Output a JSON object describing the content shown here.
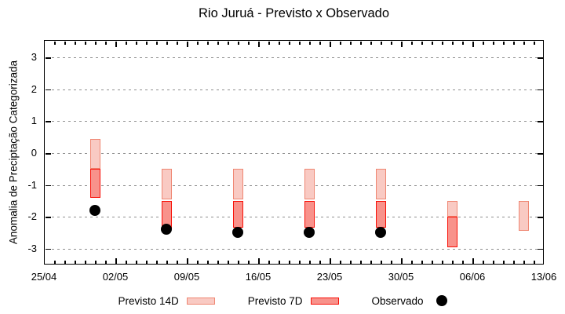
{
  "title": "Rio Juruá - Previsto x Observado",
  "ylabel": "Anomalia de Preciptação Categorizada",
  "legend": [
    {
      "label": "Previsto 14D",
      "swatch": "pink-box"
    },
    {
      "label": "Previsto 7D",
      "swatch": "red-box"
    },
    {
      "label": "Observado",
      "swatch": "black-dot"
    }
  ],
  "colors": {
    "p14_fill": "#f9cac3",
    "p14_border": "#ef8672",
    "p7_fill": "#f8928b",
    "p7_border": "#f81007",
    "obs": "#000000",
    "grid": "#8f8f8f",
    "axis": "#000000"
  },
  "chart_data": {
    "type": "bar",
    "subtype": "floating-range-bars-with-observed-points",
    "title": "Rio Juruá - Previsto x Observado",
    "xlabel": "",
    "ylabel": "Anomalia de Preciptação Categorizada",
    "grid": "dashed-horizontal",
    "legend_position": "below",
    "ylim": [
      -3.5,
      3.55
    ],
    "y_ticks": [
      -3,
      -2,
      -1,
      0,
      1,
      2,
      3
    ],
    "x_axis": {
      "start_label": "25/04",
      "end_label": "13/06",
      "tick_labels": [
        "25/04",
        "02/05",
        "09/05",
        "16/05",
        "23/05",
        "30/05",
        "06/06",
        "13/06"
      ],
      "tick_days": [
        0,
        7,
        14,
        21,
        28,
        35,
        42,
        49
      ],
      "minor_tick_interval_days": 1,
      "range_days": [
        0,
        49
      ]
    },
    "points": [
      {
        "date": "30/04",
        "day": 5,
        "previsto_14d": [
          -0.5,
          0.45
        ],
        "previsto_7d": [
          -1.4,
          -0.5
        ],
        "observado": -1.8
      },
      {
        "date": "07/05",
        "day": 12,
        "previsto_14d": [
          -1.45,
          -0.5
        ],
        "previsto_7d": [
          -2.4,
          -1.5
        ],
        "observado": -2.4
      },
      {
        "date": "14/05",
        "day": 19,
        "previsto_14d": [
          -1.45,
          -0.5
        ],
        "previsto_7d": [
          -2.35,
          -1.5
        ],
        "observado": -2.5
      },
      {
        "date": "21/05",
        "day": 26,
        "previsto_14d": [
          -1.45,
          -0.5
        ],
        "previsto_7d": [
          -2.35,
          -1.5
        ],
        "observado": -2.5
      },
      {
        "date": "28/05",
        "day": 33,
        "previsto_14d": [
          -1.45,
          -0.5
        ],
        "previsto_7d": [
          -2.35,
          -1.5
        ],
        "observado": -2.5
      },
      {
        "date": "04/06",
        "day": 40,
        "previsto_14d": [
          -2.0,
          -1.5
        ],
        "previsto_7d": [
          -2.95,
          -2.0
        ],
        "observado": null
      },
      {
        "date": "11/06",
        "day": 47,
        "previsto_14d": [
          -2.45,
          -1.5
        ],
        "previsto_7d": null,
        "observado": null
      }
    ]
  }
}
